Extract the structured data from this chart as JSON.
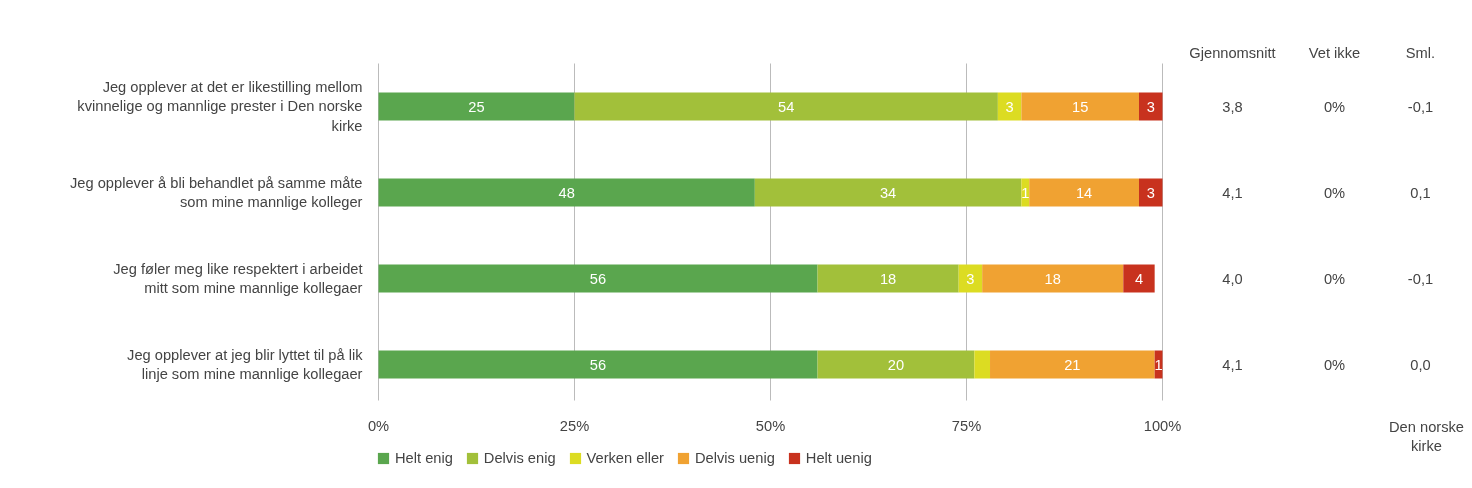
{
  "chart_data": {
    "type": "bar",
    "orientation": "horizontal",
    "stacked": true,
    "categories": [
      "Jeg opplever at det er likestilling mellom kvinnelige og mannlige prester i Den norske kirke",
      "Jeg opplever å bli behandlet på samme måte som mine mannlige kolleger",
      "Jeg føler meg like respektert i arbeidet mitt som mine mannlige kollegaer",
      "Jeg opplever at jeg blir lyttet til på lik linje som mine mannlige kollegaer"
    ],
    "series": [
      {
        "name": "Helt enig",
        "color": "#5aa64e",
        "values": [
          25,
          48,
          56,
          56
        ],
        "value_labels": [
          "25",
          "48",
          "56",
          "56"
        ]
      },
      {
        "name": "Delvis enig",
        "color": "#a2c03a",
        "values": [
          54,
          34,
          18,
          20
        ],
        "value_labels": [
          "54",
          "34",
          "18",
          "20"
        ]
      },
      {
        "name": "Verken eller",
        "color": "#dcdc22",
        "values": [
          3,
          1,
          3,
          2
        ],
        "value_labels": [
          "3",
          "1",
          "3",
          null
        ]
      },
      {
        "name": "Delvis uenig",
        "color": "#f0a232",
        "values": [
          15,
          14,
          18,
          21
        ],
        "value_labels": [
          "15",
          "14",
          "18",
          "21"
        ]
      },
      {
        "name": "Helt uenig",
        "color": "#c8321e",
        "values": [
          3,
          3,
          4,
          1
        ],
        "value_labels": [
          "3",
          "3",
          "4",
          "1"
        ]
      }
    ],
    "xlim": [
      0,
      100
    ],
    "xticks": [
      {
        "value": 0,
        "label": "0%"
      },
      {
        "value": 25,
        "label": "25%"
      },
      {
        "value": 50,
        "label": "50%"
      },
      {
        "value": 75,
        "label": "75%"
      },
      {
        "value": 100,
        "label": "100%"
      }
    ],
    "grid": "x",
    "legend": "bottom",
    "annotations": [
      "Gjennomsnitt",
      "Vet ikke",
      "Sml.",
      "3,8",
      "0%",
      "-0,1",
      "4,1",
      "0%",
      "0,1",
      "4,0",
      "0%",
      "-0,1",
      "4,1",
      "0%",
      "0,0",
      "Den norske kirke"
    ]
  }
}
